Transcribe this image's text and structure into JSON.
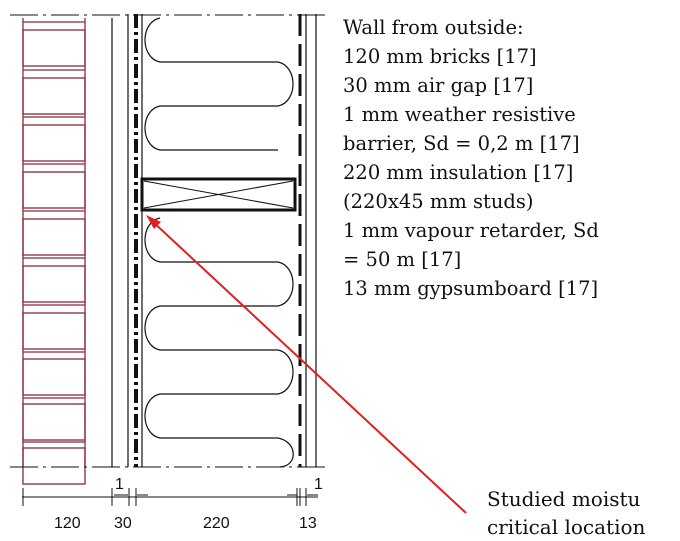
{
  "description": {
    "lines": [
      "Wall from outside:",
      "120 mm bricks [17]",
      "30 mm air gap [17]",
      "1 mm weather resistive",
      "barrier, Sd = 0,2 m [17]",
      "220 mm insulation [17]",
      "(220x45 mm studs)",
      "1 mm vapour retarder, Sd",
      "= 50 m  [17]",
      "13 mm gypsumboard [17]"
    ]
  },
  "annotation": {
    "line1": "Studied moistu",
    "line2": "critical location"
  },
  "dimensions": {
    "bricks": "120",
    "air_gap": "30",
    "insulation": "220",
    "gypsum": "13",
    "barrier_thin": "1",
    "retarder_thin": "1"
  },
  "colors": {
    "brick": "#8a2a3a",
    "arrow": "#e02020",
    "line": "#111111"
  }
}
